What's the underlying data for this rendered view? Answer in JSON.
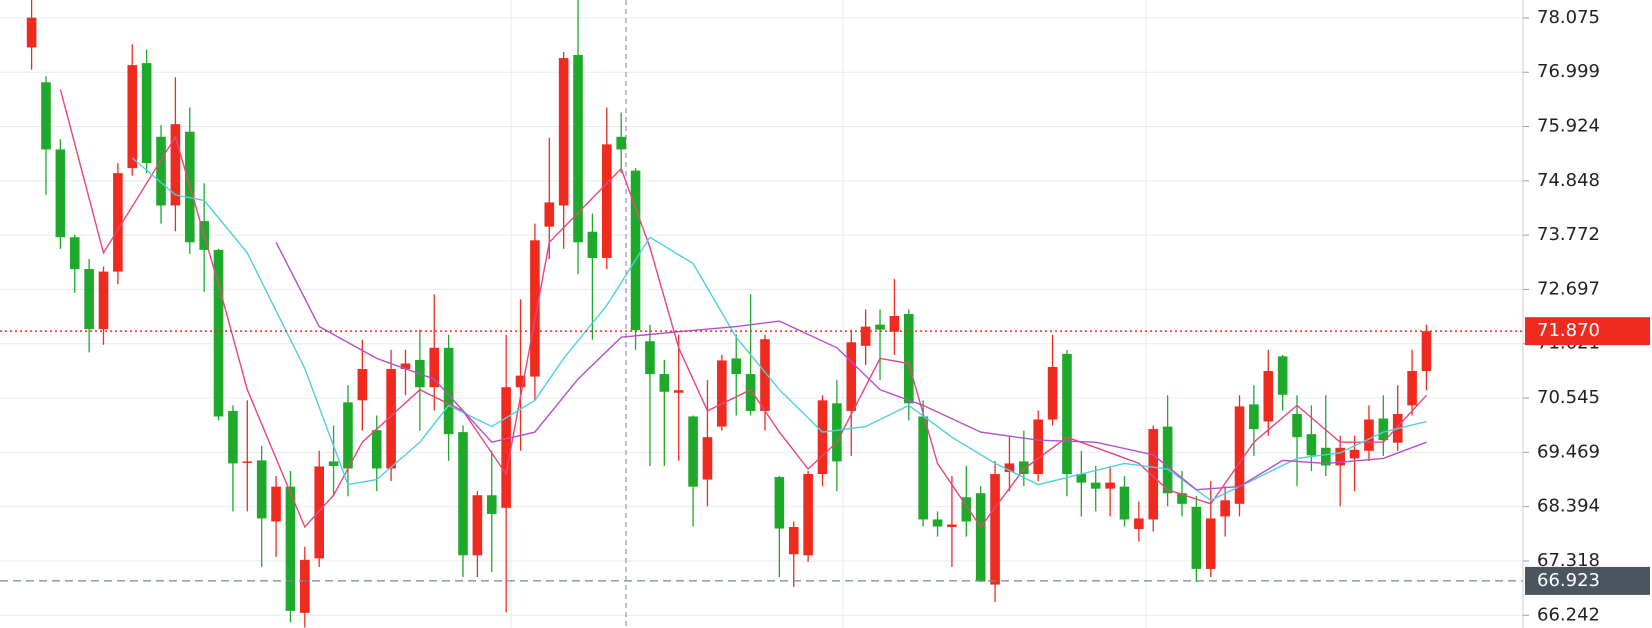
{
  "chart_data": {
    "type": "candlestick",
    "up_color": "#ef2b20",
    "down_color": "#1ea92b",
    "candles": {
      "open": [
        77.49,
        76.8,
        75.47,
        73.73,
        73.1,
        71.91,
        73.05,
        75.1,
        77.18,
        75.72,
        74.36,
        75.82,
        74.05,
        73.48,
        70.29,
        69.27,
        69.31,
        68.1,
        68.79,
        66.29,
        67.37,
        69.29,
        70.46,
        70.5,
        69.91,
        69.15,
        71.12,
        71.3,
        70.76,
        71.54,
        69.87,
        67.43,
        68.62,
        68.37,
        70.76,
        70.97,
        73.94,
        74.36,
        77.34,
        73.84,
        73.32,
        75.72,
        75.05,
        71.67,
        71.02,
        70.65,
        70.18,
        68.93,
        69.98,
        71.33,
        71.02,
        70.29,
        68.98,
        67.45,
        67.43,
        69.04,
        70.44,
        70.29,
        71.58,
        72.0,
        71.86,
        72.21,
        70.18,
        68.14,
        67.99,
        68.58,
        68.66,
        66.85,
        69.08,
        69.29,
        69.04,
        70.12,
        71.42,
        69.04,
        68.87,
        68.75,
        68.79,
        67.95,
        68.14,
        69.98,
        68.66,
        68.39,
        67.16,
        68.2,
        68.45,
        70.42,
        70.08,
        71.37,
        70.23,
        69.83,
        69.56,
        69.21,
        69.35,
        69.5,
        70.14,
        69.66,
        70.4,
        71.08
      ],
      "high": [
        78.43,
        76.92,
        75.67,
        73.78,
        73.3,
        73.15,
        75.2,
        77.55,
        77.45,
        75.95,
        76.9,
        76.3,
        74.8,
        73.5,
        70.4,
        70.5,
        69.6,
        69.0,
        69.1,
        67.6,
        69.5,
        70.0,
        70.8,
        71.7,
        70.2,
        71.5,
        71.5,
        71.9,
        72.6,
        71.8,
        70.0,
        68.7,
        69.5,
        71.8,
        72.5,
        74.0,
        75.7,
        77.4,
        78.43,
        74.2,
        76.3,
        76.2,
        75.1,
        72.0,
        71.3,
        71.8,
        70.2,
        70.9,
        71.4,
        71.8,
        72.6,
        71.8,
        69.0,
        68.1,
        69.1,
        70.6,
        70.9,
        71.9,
        72.3,
        72.3,
        72.9,
        72.3,
        70.5,
        68.3,
        69.0,
        69.2,
        68.8,
        69.3,
        69.8,
        69.9,
        70.3,
        71.8,
        71.5,
        69.5,
        69.2,
        69.2,
        69.0,
        68.5,
        70.0,
        70.6,
        69.1,
        68.6,
        68.9,
        68.8,
        70.6,
        70.8,
        71.5,
        71.4,
        70.6,
        70.4,
        70.6,
        69.8,
        69.8,
        70.4,
        70.6,
        70.8,
        71.5,
        72.0
      ],
      "low": [
        77.05,
        74.57,
        73.5,
        72.63,
        71.45,
        71.6,
        72.8,
        74.95,
        75.0,
        74.0,
        73.85,
        73.4,
        72.65,
        70.1,
        68.3,
        68.3,
        67.2,
        67.4,
        66.1,
        66.0,
        67.2,
        68.6,
        68.6,
        69.9,
        68.7,
        68.9,
        70.6,
        69.9,
        70.3,
        69.3,
        67.0,
        67.0,
        67.1,
        66.3,
        69.5,
        70.5,
        73.3,
        73.5,
        73.0,
        71.7,
        73.1,
        75.0,
        71.5,
        69.2,
        69.2,
        69.3,
        68.0,
        68.4,
        69.9,
        70.2,
        70.2,
        69.9,
        67.0,
        66.8,
        67.3,
        68.8,
        68.7,
        69.4,
        71.2,
        70.9,
        71.4,
        70.1,
        68.0,
        67.8,
        67.2,
        67.8,
        66.9,
        66.5,
        68.7,
        68.8,
        68.9,
        70.0,
        68.6,
        68.2,
        68.3,
        68.2,
        68.0,
        67.7,
        67.9,
        68.4,
        68.2,
        66.9,
        67.0,
        67.8,
        68.2,
        69.4,
        69.8,
        70.3,
        68.8,
        69.1,
        69.0,
        68.4,
        68.7,
        69.3,
        69.4,
        69.5,
        70.2,
        70.7
      ],
      "close": [
        78.08,
        75.47,
        73.73,
        73.1,
        71.91,
        73.05,
        75.0,
        77.14,
        75.2,
        74.36,
        75.97,
        73.63,
        73.48,
        70.18,
        69.25,
        69.29,
        68.16,
        68.79,
        66.33,
        67.34,
        69.19,
        69.2,
        69.15,
        71.12,
        69.15,
        71.12,
        71.23,
        70.76,
        71.54,
        69.83,
        67.43,
        68.62,
        68.25,
        70.76,
        70.99,
        73.67,
        74.42,
        77.28,
        73.63,
        73.32,
        75.57,
        75.47,
        71.89,
        71.02,
        70.67,
        70.7,
        68.79,
        69.77,
        71.29,
        71.02,
        70.29,
        71.71,
        67.96,
        67.99,
        69.04,
        70.5,
        69.29,
        71.65,
        71.96,
        71.9,
        72.17,
        70.44,
        68.14,
        68.0,
        68.04,
        68.1,
        66.91,
        69.04,
        69.25,
        69.04,
        70.12,
        71.16,
        69.04,
        68.87,
        68.75,
        68.87,
        68.14,
        68.16,
        69.93,
        68.66,
        68.45,
        67.16,
        68.16,
        68.52,
        70.38,
        69.93,
        71.08,
        70.61,
        69.77,
        69.41,
        69.21,
        69.56,
        69.52,
        70.12,
        69.71,
        70.23,
        71.08,
        71.87
      ]
    },
    "ma_lines": [
      {
        "color": "#e8457c",
        "x": [
          2,
          5,
          10,
          13,
          15,
          19,
          21,
          23,
          27,
          30,
          33,
          36,
          41,
          43,
          45,
          47,
          50,
          52,
          54,
          56,
          59,
          61,
          63,
          66,
          69,
          72,
          75,
          77,
          79,
          82,
          85,
          88,
          91,
          94,
          97
        ],
        "values": [
          76.66,
          73.42,
          75.72,
          72.8,
          70.71,
          67.99,
          68.62,
          69.67,
          70.71,
          70.29,
          69.04,
          73.63,
          75.09,
          73.53,
          71.54,
          70.29,
          70.71,
          69.87,
          69.14,
          69.67,
          71.33,
          71.23,
          69.25,
          67.99,
          69.14,
          69.77,
          69.46,
          69.25,
          68.73,
          68.45,
          69.67,
          70.4,
          69.67,
          69.67,
          70.6
        ]
      },
      {
        "color": "#4fcfde",
        "x": [
          7,
          10,
          12,
          15,
          19,
          22,
          24,
          27,
          29,
          32,
          35,
          37,
          40,
          43,
          46,
          49,
          52,
          55,
          58,
          61,
          64,
          67,
          70,
          73,
          76,
          79,
          82,
          85,
          88,
          91,
          94,
          97
        ],
        "values": [
          75.3,
          74.57,
          74.46,
          73.42,
          71.13,
          68.83,
          68.93,
          69.67,
          70.4,
          69.98,
          70.5,
          71.33,
          72.38,
          73.73,
          73.21,
          71.75,
          70.71,
          69.87,
          69.98,
          70.4,
          69.77,
          69.25,
          68.83,
          69.04,
          69.25,
          69.14,
          68.52,
          68.93,
          69.35,
          69.46,
          69.87,
          70.08
        ]
      },
      {
        "color": "#b350cc",
        "x": [
          17,
          20,
          24,
          28,
          32,
          35,
          38,
          41,
          45,
          49,
          52,
          56,
          59,
          62,
          66,
          70,
          74,
          78,
          81,
          84,
          87,
          90,
          94,
          97
        ],
        "values": [
          73.63,
          71.96,
          71.33,
          70.92,
          69.67,
          69.87,
          70.92,
          71.75,
          71.86,
          71.96,
          72.07,
          71.54,
          70.71,
          70.4,
          69.87,
          69.71,
          69.67,
          69.42,
          68.73,
          68.79,
          69.31,
          69.25,
          69.35,
          69.67
        ]
      }
    ],
    "ylim": [
      65.99,
      78.43
    ],
    "yticks": [
      78.075,
      76.999,
      75.924,
      74.848,
      73.772,
      72.697,
      71.621,
      70.545,
      69.469,
      68.394,
      67.318,
      66.242
    ],
    "grid": true,
    "last_price": {
      "value": 71.87,
      "label": "71.870"
    },
    "ref_price": 66.923
  }
}
